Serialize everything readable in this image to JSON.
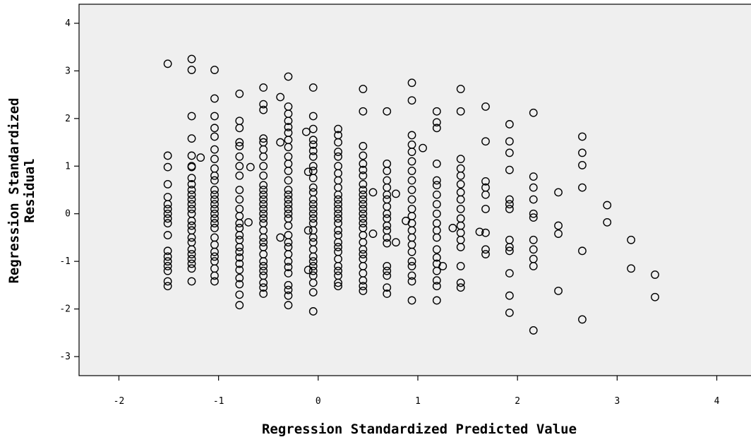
{
  "chart_data": {
    "type": "scatter",
    "xlabel": "Regression Standardized Predicted Value",
    "ylabel": "Regression Standardized Residual",
    "xlim": [
      -2.4,
      4.4
    ],
    "ylim": [
      -3.4,
      4.4
    ],
    "x_ticks": [
      -2,
      -1,
      0,
      1,
      2,
      3,
      4
    ],
    "y_ticks": [
      -3,
      -2,
      -1,
      0,
      1,
      2,
      3,
      4
    ],
    "grid": false,
    "background_color": "#efefef",
    "marker": "open-circle",
    "columns": [
      {
        "x": -1.51,
        "y": [
          3.15,
          1.22,
          0.98,
          0.62,
          0.35,
          0.2,
          0.1,
          0.0,
          -0.1,
          -0.2,
          -0.45,
          -0.78,
          -0.9,
          -1.0,
          -1.1,
          -1.2,
          -1.42,
          -1.52
        ]
      },
      {
        "x": -1.27,
        "y": [
          3.25,
          3.02,
          2.05,
          1.58,
          1.22,
          1.0,
          0.98,
          0.75,
          0.62,
          0.5,
          0.4,
          0.3,
          0.2,
          0.1,
          0.0,
          -0.15,
          -0.25,
          -0.35,
          -0.5,
          -0.6,
          -0.75,
          -0.85,
          -0.95,
          -1.05,
          -1.15,
          -1.42
        ]
      },
      {
        "x": -1.04,
        "y": [
          3.02,
          2.42,
          2.05,
          1.8,
          1.62,
          1.35,
          1.15,
          0.95,
          0.8,
          0.7,
          0.5,
          0.4,
          0.3,
          0.2,
          0.1,
          0.0,
          -0.1,
          -0.2,
          -0.3,
          -0.5,
          -0.65,
          -0.8,
          -0.9,
          -1.0,
          -1.15,
          -1.3,
          -1.42
        ]
      },
      {
        "x": -0.79,
        "y": [
          2.52,
          1.95,
          1.8,
          1.5,
          1.42,
          1.2,
          1.0,
          0.8,
          0.5,
          0.3,
          0.1,
          -0.05,
          -0.2,
          -0.3,
          -0.45,
          -0.55,
          -0.7,
          -0.8,
          -0.92,
          -1.05,
          -1.18,
          -1.35,
          -1.48,
          -1.7,
          -1.92
        ]
      },
      {
        "x": -0.55,
        "y": [
          2.65,
          2.3,
          2.18,
          1.58,
          1.5,
          1.35,
          1.2,
          1.0,
          0.8,
          0.6,
          0.5,
          0.4,
          0.3,
          0.2,
          0.1,
          0.0,
          -0.1,
          -0.2,
          -0.35,
          -0.5,
          -0.6,
          -0.7,
          -0.85,
          -1.0,
          -1.1,
          -1.2,
          -1.3,
          -1.45,
          -1.55,
          -1.68
        ]
      },
      {
        "x": -0.3,
        "y": [
          2.88,
          2.25,
          2.1,
          1.95,
          1.82,
          1.7,
          1.55,
          1.4,
          1.2,
          1.05,
          0.9,
          0.7,
          0.5,
          0.4,
          0.3,
          0.2,
          0.1,
          0.0,
          -0.1,
          -0.25,
          -0.45,
          -0.6,
          -0.7,
          -0.85,
          -1.0,
          -1.12,
          -1.25,
          -1.5,
          -1.6,
          -1.72,
          -1.92
        ]
      },
      {
        "x": -0.05,
        "y": [
          2.65,
          2.05,
          1.78,
          1.55,
          1.45,
          1.32,
          1.2,
          1.0,
          0.9,
          0.75,
          0.55,
          0.45,
          0.3,
          0.2,
          0.1,
          0.0,
          -0.1,
          -0.2,
          -0.35,
          -0.5,
          -0.6,
          -0.75,
          -0.9,
          -1.0,
          -1.1,
          -1.2,
          -1.3,
          -1.45,
          -1.65,
          -2.05
        ]
      },
      {
        "x": 0.2,
        "y": [
          1.78,
          1.65,
          1.5,
          1.3,
          1.2,
          1.0,
          0.85,
          0.7,
          0.55,
          0.4,
          0.3,
          0.2,
          0.1,
          0.0,
          -0.1,
          -0.2,
          -0.35,
          -0.45,
          -0.6,
          -0.7,
          -0.8,
          -0.95,
          -1.1,
          -1.2,
          -1.3,
          -1.45,
          -1.52
        ]
      },
      {
        "x": 0.45,
        "y": [
          2.62,
          2.15,
          1.42,
          1.22,
          1.05,
          0.92,
          0.8,
          0.62,
          0.5,
          0.4,
          0.3,
          0.2,
          0.1,
          0.0,
          -0.1,
          -0.2,
          -0.3,
          -0.45,
          -0.6,
          -0.75,
          -0.85,
          -0.95,
          -1.1,
          -1.25,
          -1.4,
          -1.52,
          -1.62
        ]
      },
      {
        "x": 0.69,
        "y": [
          2.15,
          1.05,
          0.9,
          0.7,
          0.55,
          0.4,
          0.3,
          0.15,
          0.0,
          -0.1,
          -0.25,
          -0.35,
          -0.5,
          -0.62,
          -1.1,
          -1.2,
          -1.3,
          -1.55,
          -1.68
        ]
      },
      {
        "x": 0.94,
        "y": [
          2.75,
          2.38,
          1.65,
          1.45,
          1.3,
          1.1,
          0.9,
          0.7,
          0.5,
          0.3,
          0.1,
          -0.05,
          -0.2,
          -0.35,
          -0.5,
          -0.65,
          -0.8,
          -1.0,
          -1.1,
          -1.3,
          -1.42,
          -1.82
        ]
      },
      {
        "x": 1.19,
        "y": [
          2.15,
          1.92,
          1.8,
          1.05,
          0.7,
          0.6,
          0.4,
          0.2,
          0.0,
          -0.2,
          -0.35,
          -0.5,
          -0.75,
          -0.92,
          -1.05,
          -1.2,
          -1.4,
          -1.52,
          -1.82
        ]
      },
      {
        "x": 1.43,
        "y": [
          2.62,
          2.15,
          1.15,
          0.95,
          0.8,
          0.62,
          0.45,
          0.3,
          0.1,
          -0.1,
          -0.25,
          -0.4,
          -0.55,
          -0.7,
          -1.1,
          -1.45,
          -1.55
        ]
      },
      {
        "x": 1.68,
        "y": [
          2.25,
          1.52,
          0.68,
          0.55,
          0.4,
          0.1,
          -0.4,
          -0.75,
          -0.85
        ]
      },
      {
        "x": 1.92,
        "y": [
          1.88,
          1.52,
          1.28,
          0.92,
          0.3,
          0.2,
          0.1,
          -0.55,
          -0.7,
          -0.78,
          -1.25,
          -1.72,
          -2.08
        ]
      },
      {
        "x": 2.16,
        "y": [
          2.12,
          0.78,
          0.55,
          0.3,
          0.0,
          -0.08,
          -0.55,
          -0.75,
          -0.95,
          -1.1,
          -2.45
        ]
      },
      {
        "x": 2.41,
        "y": [
          0.45,
          -0.25,
          -0.42,
          -1.62
        ]
      },
      {
        "x": 2.65,
        "y": [
          1.62,
          1.28,
          1.02,
          0.55,
          -0.78,
          -2.22
        ]
      },
      {
        "x": 2.9,
        "y": [
          0.18,
          -0.18
        ]
      },
      {
        "x": 3.14,
        "y": [
          -0.55,
          -1.15
        ]
      },
      {
        "x": 3.38,
        "y": [
          -1.28,
          -1.75
        ]
      }
    ],
    "extra_points": [
      {
        "x": -1.18,
        "y": 1.18
      },
      {
        "x": -0.68,
        "y": 0.98
      },
      {
        "x": -0.7,
        "y": -0.18
      },
      {
        "x": -0.38,
        "y": 2.45
      },
      {
        "x": -0.38,
        "y": 1.5
      },
      {
        "x": -0.38,
        "y": -0.5
      },
      {
        "x": -0.12,
        "y": 1.72
      },
      {
        "x": -0.1,
        "y": 0.88
      },
      {
        "x": -0.1,
        "y": -0.35
      },
      {
        "x": -0.1,
        "y": -1.18
      },
      {
        "x": 0.55,
        "y": 0.45
      },
      {
        "x": 0.55,
        "y": -0.42
      },
      {
        "x": 0.78,
        "y": 0.42
      },
      {
        "x": 0.78,
        "y": -0.6
      },
      {
        "x": 0.88,
        "y": -0.15
      },
      {
        "x": 1.05,
        "y": 1.38
      },
      {
        "x": 1.25,
        "y": -1.1
      },
      {
        "x": 1.35,
        "y": -0.3
      },
      {
        "x": 1.62,
        "y": -0.38
      }
    ]
  }
}
